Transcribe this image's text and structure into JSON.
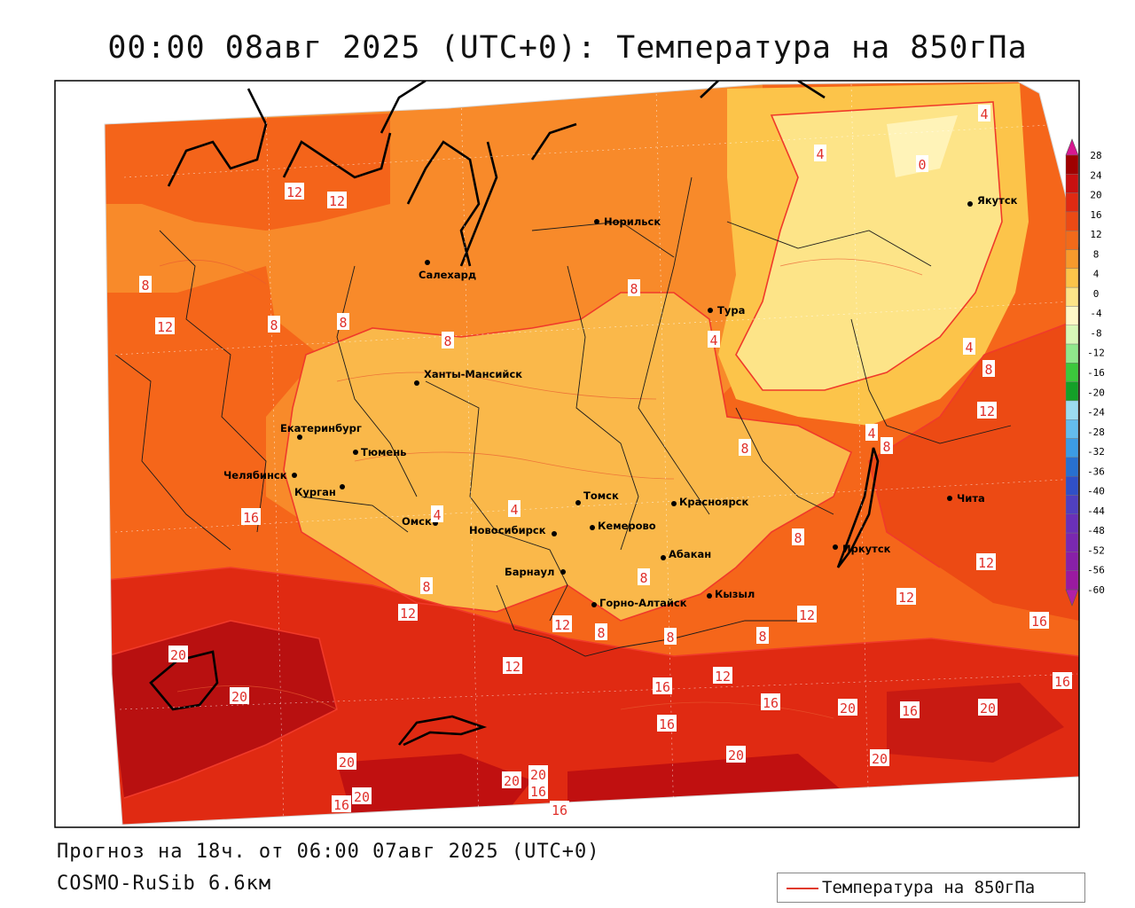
{
  "title": "00:00 08авг 2025 (UTC+0): Температура на 850гПа",
  "subtitle": "Прогноз на 18ч. от 06:00 07авг 2025 (UTC+0)",
  "model": "COSMO-RuSib 6.6км",
  "legend_label": "Температура на 850гПа",
  "colorbar": {
    "ticks": [
      "28",
      "24",
      "20",
      "16",
      "12",
      "8",
      "4",
      "0",
      "-4",
      "-8",
      "-12",
      "-16",
      "-20",
      "-24",
      "-28",
      "-32",
      "-36",
      "-40",
      "-44",
      "-48",
      "-52",
      "-56",
      "-60"
    ],
    "colors": [
      "#a00000",
      "#c81010",
      "#e02a12",
      "#ec4a14",
      "#f26a1a",
      "#f89a2c",
      "#fcc44a",
      "#fde488",
      "#fff8c8",
      "#d8f8b8",
      "#90e88c",
      "#3cc83c",
      "#14a028",
      "#9cdcf0",
      "#64bcec",
      "#3c9ce4",
      "#2870d0",
      "#3050c8",
      "#5040c0",
      "#6a30b8",
      "#7a28b0",
      "#8820a8",
      "#9a1aa0"
    ],
    "top_arrow_color": "#d81890",
    "bottom_arrow_color": "#b020a8"
  },
  "cities": [
    {
      "name": "Норильск"
    },
    {
      "name": "Якутск"
    },
    {
      "name": "Салехард"
    },
    {
      "name": "Тура"
    },
    {
      "name": "Ханты-Мансийск"
    },
    {
      "name": "Екатеринбург"
    },
    {
      "name": "Тюмень"
    },
    {
      "name": "Челябинск"
    },
    {
      "name": "Курган"
    },
    {
      "name": "Омск"
    },
    {
      "name": "Новосибирск"
    },
    {
      "name": "Томск"
    },
    {
      "name": "Кемерово"
    },
    {
      "name": "Красноярск"
    },
    {
      "name": "Барнаул"
    },
    {
      "name": "Абакан"
    },
    {
      "name": "Иркутск"
    },
    {
      "name": "Чита"
    },
    {
      "name": "Горно-Алтайск"
    },
    {
      "name": "Кызыл"
    }
  ],
  "contour_labels": [
    "4",
    "0",
    "4",
    "12",
    "12",
    "8",
    "8",
    "12",
    "8",
    "8",
    "4",
    "4",
    "8",
    "4",
    "8",
    "12",
    "8",
    "8",
    "4",
    "4",
    "8",
    "12",
    "12",
    "12",
    "16",
    "8",
    "12",
    "8",
    "8",
    "8",
    "8",
    "12",
    "16",
    "20",
    "20",
    "16",
    "12",
    "16",
    "12",
    "16",
    "16",
    "20",
    "20",
    "20",
    "20",
    "20",
    "20",
    "16",
    "20",
    "16",
    "20",
    "16",
    "16"
  ]
}
